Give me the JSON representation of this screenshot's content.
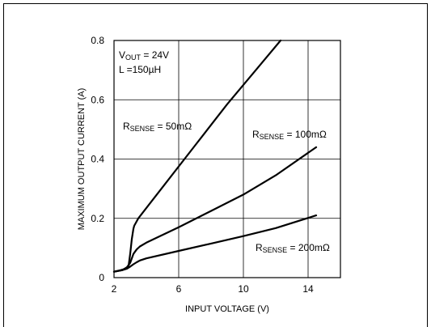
{
  "chart_data": {
    "type": "line",
    "title": "",
    "xlabel": "INPUT VOLTAGE (V)",
    "ylabel": "MAXIMUM OUTPUT CURRENT (A)",
    "xlim": [
      2,
      16
    ],
    "ylim": [
      0,
      0.8
    ],
    "xticks": [
      2,
      6,
      10,
      14
    ],
    "xtick_labels": [
      "2",
      "6",
      "10",
      "14"
    ],
    "xgrid": [
      2,
      6,
      10,
      14,
      16
    ],
    "yticks": [
      0,
      0.2,
      0.4,
      0.6,
      0.8
    ],
    "ytick_labels": [
      "0",
      "0.2",
      "0.4",
      "0.6",
      "0.8"
    ],
    "grid": true,
    "annotations": {
      "vout": {
        "main": "V",
        "sub": "OUT",
        "rest": " = 24V"
      },
      "inductance": "L =150µH"
    },
    "series": [
      {
        "name": "",
        "label_parts": {
          "main": "R",
          "sub": "SENSE",
          "rest": " = 50mΩ"
        },
        "x": [
          2,
          2.4,
          2.7,
          2.9,
          3.0,
          3.1,
          3.2,
          3.25,
          3.3,
          3.5,
          5,
          7,
          9,
          11,
          12.3
        ],
        "y": [
          0.02,
          0.025,
          0.03,
          0.04,
          0.08,
          0.13,
          0.165,
          0.175,
          0.18,
          0.2,
          0.305,
          0.445,
          0.585,
          0.715,
          0.8
        ]
      },
      {
        "name": "",
        "label_parts": {
          "main": "R",
          "sub": "SENSE",
          "rest": " = 100mΩ"
        },
        "x": [
          2,
          2.5,
          2.8,
          3.0,
          3.2,
          3.4,
          3.6,
          4,
          6,
          8,
          10,
          12,
          14.5
        ],
        "y": [
          0.02,
          0.025,
          0.035,
          0.05,
          0.08,
          0.095,
          0.105,
          0.118,
          0.17,
          0.225,
          0.28,
          0.345,
          0.44
        ]
      },
      {
        "name": "",
        "label_parts": {
          "main": "R",
          "sub": "SENSE",
          "rest": " = 200mΩ"
        },
        "x": [
          2,
          2.5,
          2.8,
          3.0,
          3.2,
          3.4,
          3.6,
          4,
          6,
          8,
          10,
          12,
          14.5
        ],
        "y": [
          0.02,
          0.025,
          0.03,
          0.037,
          0.045,
          0.052,
          0.058,
          0.065,
          0.09,
          0.115,
          0.14,
          0.167,
          0.21
        ]
      }
    ]
  }
}
